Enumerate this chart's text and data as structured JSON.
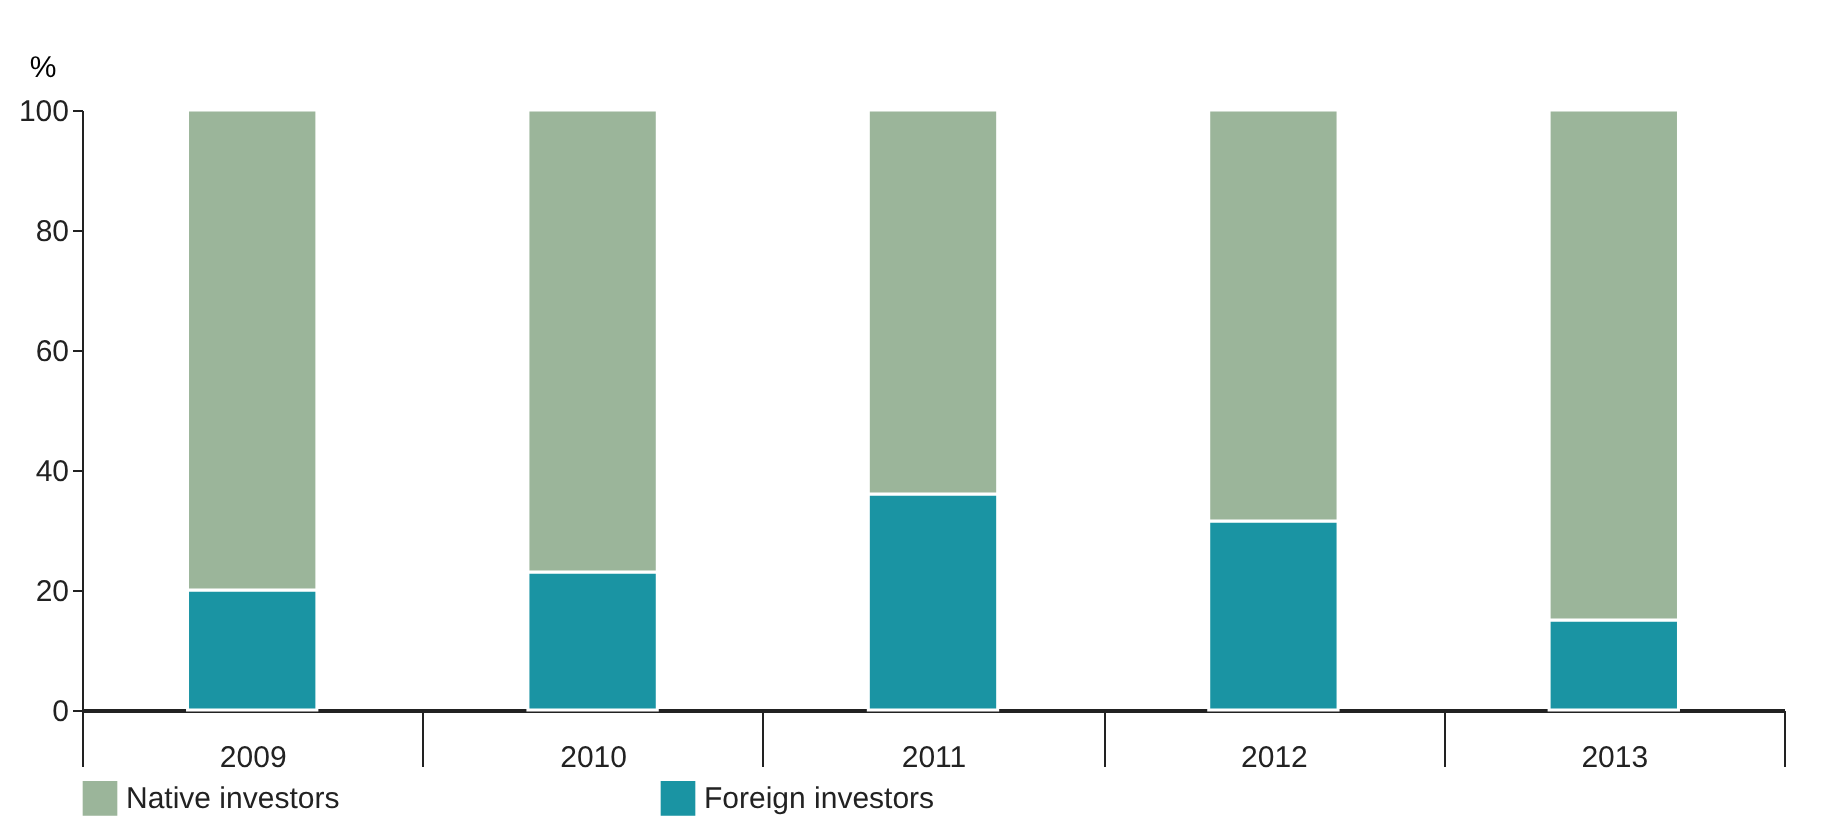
{
  "chart_data": {
    "type": "bar",
    "stacked": true,
    "ylabel": "%",
    "categories": [
      "2009",
      "2010",
      "2011",
      "2012",
      "2013"
    ],
    "series": [
      {
        "name": "Foreign investors",
        "color": "#1a94a3",
        "values": [
          20,
          23,
          36,
          31.5,
          15
        ]
      },
      {
        "name": "Native investors",
        "color": "#9bb59a",
        "values": [
          80,
          77,
          64,
          68.5,
          85
        ]
      }
    ],
    "ylim": [
      0,
      100
    ],
    "yticks": [
      0,
      20,
      40,
      60,
      80,
      100
    ],
    "grid": false,
    "legend": "bottom"
  }
}
